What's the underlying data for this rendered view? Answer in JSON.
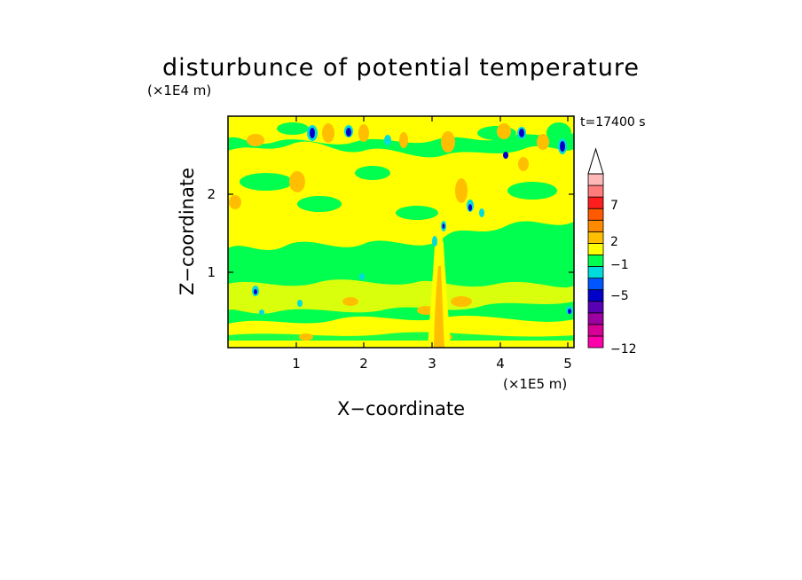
{
  "chart_data": {
    "type": "heatmap",
    "title": "disturbunce of potential temperature",
    "time_label": "t=17400 s",
    "xlabel": "X−coordinate",
    "ylabel": "Z−coordinate",
    "x_unit": "(×1E5 m)",
    "y_unit": "(×1E4 m)",
    "xlim": [
      0,
      5.1
    ],
    "ylim": [
      0,
      2.95
    ],
    "x_ticks": [
      "1",
      "2",
      "3",
      "4",
      "5"
    ],
    "y_ticks": [
      "1",
      "2"
    ],
    "colorbar": {
      "colors": [
        "#ff00aa",
        "#d60097",
        "#9b00a0",
        "#5a00b4",
        "#0000c8",
        "#0055ff",
        "#00dcdc",
        "#00ff4f",
        "#ffff00",
        "#ffbf00",
        "#ff8a00",
        "#ff5a00",
        "#ff1e1e",
        "#ff7c7c",
        "#ffb8b8"
      ],
      "tick_labels": [
        "7",
        "2",
        "−1",
        "−5",
        "−12"
      ],
      "extend": "max"
    },
    "fields": {
      "dominant": "#00ff4f",
      "warm_layers": "#ffff00",
      "hot_spots": "#ffbf00",
      "cold_spots": "#0000c8"
    }
  }
}
